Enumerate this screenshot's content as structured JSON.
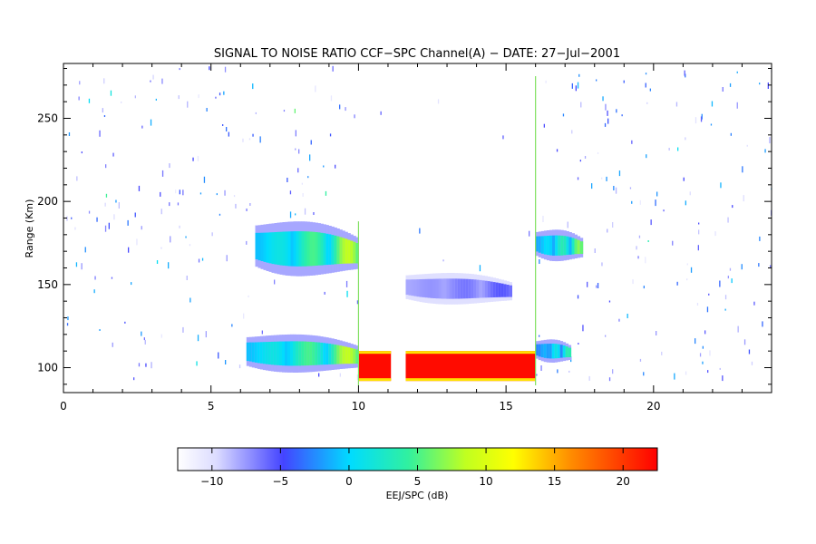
{
  "chart_data": {
    "type": "heatmap",
    "title": "SIGNAL TO NOISE RATIO CCF−SPC Channel(A) − DATE: 27−Jul−2001",
    "xlabel": "",
    "ylabel": "Range (Km)",
    "xlim": [
      0,
      24
    ],
    "ylim": [
      85,
      283
    ],
    "x_ticks": [
      0,
      5,
      10,
      15,
      20
    ],
    "x_tick_labels": [
      "0",
      "5",
      "10",
      "15",
      "20"
    ],
    "y_ticks": [
      100,
      150,
      200,
      250
    ],
    "y_tick_labels": [
      "100",
      "150",
      "200",
      "250"
    ],
    "grid": false,
    "colorbar": {
      "label": "EEJ/SPC (dB)",
      "range": [
        -12.5,
        22.5
      ],
      "ticks": [
        -10,
        -5,
        0,
        5,
        10,
        15,
        20
      ],
      "tick_labels": [
        "−10",
        "−5",
        "0",
        "5",
        "10",
        "15",
        "20"
      ]
    },
    "regions": [
      {
        "name": "upper-echo-left",
        "x": [
          6.5,
          10.0
        ],
        "range_km": [
          155,
          188
        ],
        "snr_db": [
          -8,
          10
        ]
      },
      {
        "name": "lower-echo-left",
        "x": [
          6.2,
          10.0
        ],
        "range_km": [
          97,
          120
        ],
        "snr_db": [
          -8,
          10
        ]
      },
      {
        "name": "saturated-block-1",
        "x": [
          10.0,
          11.1
        ],
        "range_km": [
          92,
          110
        ],
        "snr_db": [
          22,
          22
        ]
      },
      {
        "name": "saturated-block-2",
        "x": [
          11.6,
          16.0
        ],
        "range_km": [
          92,
          110
        ],
        "snr_db": [
          22,
          22
        ]
      },
      {
        "name": "mid-echo",
        "x": [
          11.6,
          15.2
        ],
        "range_km": [
          138,
          157
        ],
        "snr_db": [
          -10,
          -5
        ]
      },
      {
        "name": "upper-echo-right",
        "x": [
          16.0,
          17.6
        ],
        "range_km": [
          164,
          183
        ],
        "snr_db": [
          -8,
          8
        ]
      },
      {
        "name": "lower-echo-right",
        "x": [
          16.0,
          17.2
        ],
        "range_km": [
          103,
          117
        ],
        "snr_db": [
          -8,
          5
        ]
      }
    ],
    "vertical_lines_x": [
      10.0,
      16.0
    ]
  }
}
